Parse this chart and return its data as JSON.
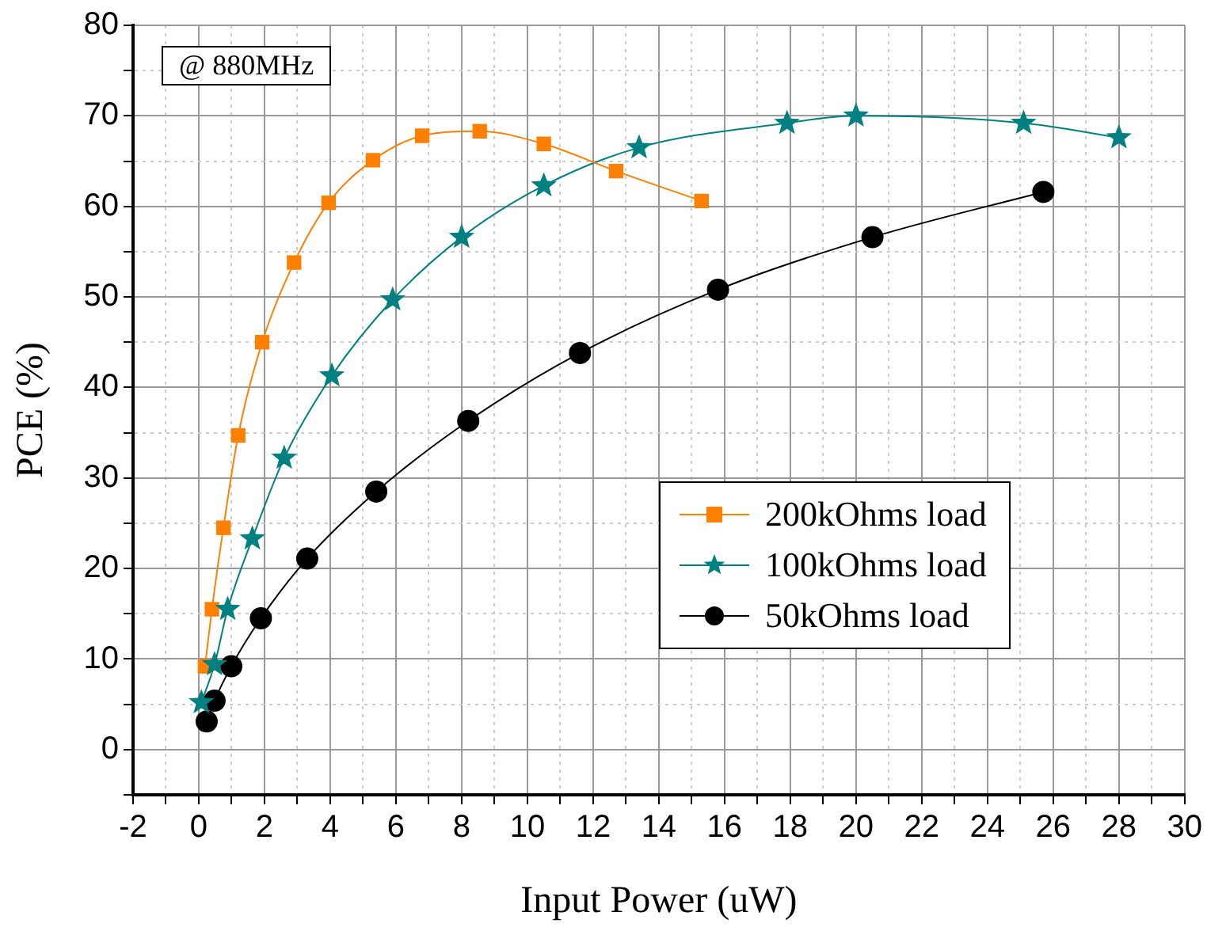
{
  "chart_data": {
    "type": "line",
    "xlabel": "Input Power (uW)",
    "ylabel": "PCE (%)",
    "annotations": [
      "@ 880MHz"
    ],
    "xlim": [
      -2,
      30
    ],
    "ylim": [
      -5,
      80
    ],
    "xticks": [
      -2,
      {
        "value": -1,
        "label": null
      },
      0,
      {
        "value": 1,
        "label": null
      },
      2,
      {
        "value": 3,
        "label": null
      },
      4,
      {
        "value": 5,
        "label": null
      },
      6,
      {
        "value": 7,
        "label": null
      },
      8,
      {
        "value": 9,
        "label": null
      },
      10,
      {
        "value": 11,
        "label": null
      },
      12,
      {
        "value": 13,
        "label": null
      },
      14,
      {
        "value": 15,
        "label": null
      },
      16,
      {
        "value": 17,
        "label": null
      },
      18,
      {
        "value": 19,
        "label": null
      },
      20,
      {
        "value": 21,
        "label": null
      },
      22,
      {
        "value": 23,
        "label": null
      },
      24,
      {
        "value": 25,
        "label": null
      },
      26,
      {
        "value": 27,
        "label": null
      },
      28,
      {
        "value": 29,
        "label": null
      },
      30
    ],
    "yticks": [
      {
        "value": -5,
        "label": null
      },
      0,
      {
        "value": 5,
        "label": null
      },
      10,
      {
        "value": 15,
        "label": null
      },
      20,
      {
        "value": 25,
        "label": null
      },
      30,
      {
        "value": 35,
        "label": null
      },
      40,
      {
        "value": 45,
        "label": null
      },
      50,
      {
        "value": 55,
        "label": null
      },
      60,
      {
        "value": 65,
        "label": null
      },
      70,
      {
        "value": 75,
        "label": null
      },
      80
    ],
    "grid": true,
    "legend": "bottom right",
    "series": [
      {
        "name": "200kOhms load",
        "color": "#ff8000",
        "marker": "square",
        "x": [
          0.19,
          0.4,
          0.75,
          1.2,
          1.93,
          2.9,
          3.95,
          5.3,
          6.8,
          8.55,
          10.5,
          12.7,
          15.3
        ],
        "values": [
          9.2,
          15.5,
          24.5,
          34.7,
          45,
          53.8,
          60.4,
          65.1,
          67.8,
          68.3,
          66.9,
          63.9,
          60.6
        ]
      },
      {
        "name": "100kOhms load",
        "color": "#008080",
        "marker": "star",
        "x": [
          0.08,
          0.48,
          0.88,
          1.63,
          2.6,
          4.05,
          5.9,
          8.0,
          10.5,
          13.4,
          17.9,
          20.0,
          25.1,
          28.0
        ],
        "values": [
          5.2,
          9.4,
          15.5,
          23.3,
          32.2,
          41.3,
          49.7,
          56.6,
          62.3,
          66.5,
          69.2,
          70.0,
          69.2,
          67.6
        ]
      },
      {
        "name": "50kOhms load",
        "color": "#000000",
        "marker": "circle",
        "x": [
          0.24,
          0.48,
          0.99,
          1.89,
          3.3,
          5.4,
          8.2,
          11.6,
          15.8,
          20.5,
          25.7
        ],
        "values": [
          3.1,
          5.4,
          9.2,
          14.5,
          21.1,
          28.5,
          36.3,
          43.8,
          50.8,
          56.6,
          61.6
        ]
      }
    ]
  }
}
